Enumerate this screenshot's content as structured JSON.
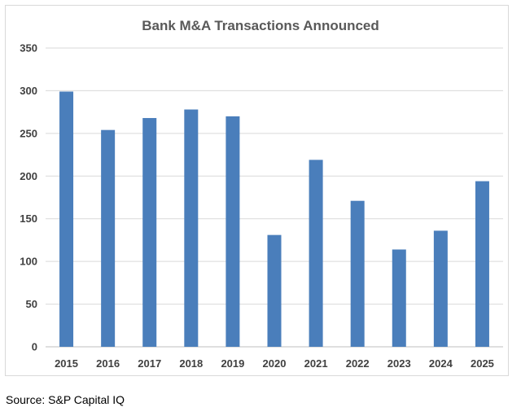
{
  "chart_data": {
    "type": "bar",
    "title": "Bank M&A Transactions Announced",
    "xlabel": "",
    "ylabel": "",
    "categories": [
      "2015",
      "2016",
      "2017",
      "2018",
      "2019",
      "2020",
      "2021",
      "2022",
      "2023",
      "2024",
      "2025"
    ],
    "values": [
      299,
      254,
      268,
      278,
      270,
      131,
      219,
      171,
      114,
      136,
      194
    ],
    "ylim": [
      0,
      350
    ],
    "yticks": [
      0,
      50,
      100,
      150,
      200,
      250,
      300,
      350
    ],
    "grid": true,
    "legend": "none",
    "bar_color": "#4a7ebb"
  },
  "footer": {
    "source": "Source: S&P Capital IQ"
  }
}
